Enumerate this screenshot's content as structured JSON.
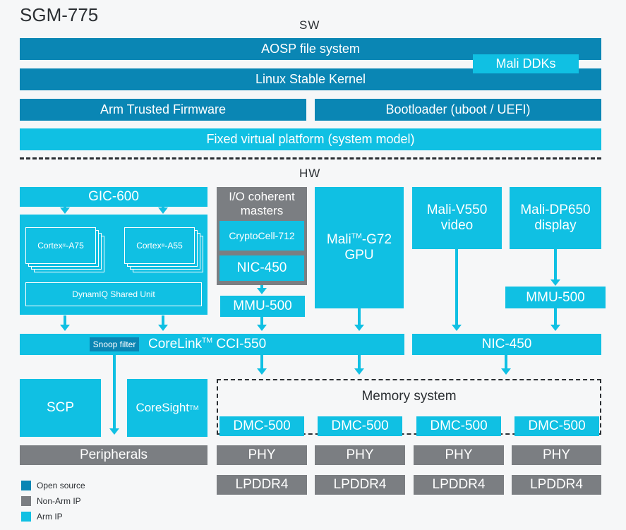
{
  "title": "SGM-775",
  "sw": {
    "header": "SW",
    "aosp": "AOSP file system",
    "mali_ddks": "Mali DDKs",
    "kernel": "Linux Stable Kernel",
    "atf": "Arm Trusted Firmware",
    "bootloader": "Bootloader (uboot / UEFI)",
    "fvp": "Fixed virtual platform (system model)"
  },
  "hw": {
    "header": "HW",
    "gic": "GIC-600",
    "cortex_a75": "Cortex",
    "cortex_a75_model": "-A75",
    "cortex_a55": "Cortex",
    "cortex_a55_model": "-A55",
    "reg_mark": "®",
    "dsu": "DynamIQ Shared Unit",
    "io_title_1": "I/O coherent",
    "io_title_2": "masters",
    "cryptocell": "CryptoCell-712",
    "nic_left": "NIC-450",
    "mmu_left": "MMU-500",
    "mali_gpu_1": "Mali",
    "mali_gpu_2": "-G72",
    "mali_gpu_3": "GPU",
    "tm_mark": "TM",
    "video_1": "Mali-V550",
    "video_2": "video",
    "display_1": "Mali-DP650",
    "display_2": "display",
    "mmu_right": "MMU-500",
    "snoop": "Snoop filter",
    "corelink": "CoreLink",
    "corelink_model": " CCI-550",
    "nic_right": "NIC-450",
    "scp": "SCP",
    "coresight": "CoreSight",
    "peripherals": "Peripherals",
    "memory_system": "Memory system",
    "dmc": [
      "DMC-500",
      "DMC-500",
      "DMC-500",
      "DMC-500"
    ],
    "phy": [
      "PHY",
      "PHY",
      "PHY",
      "PHY"
    ],
    "lpddr": [
      "LPDDR4",
      "LPDDR4",
      "LPDDR4",
      "LPDDR4"
    ]
  },
  "legend": [
    {
      "label": "Open source",
      "color": "#0a86b4"
    },
    {
      "label": "Non-Arm IP",
      "color": "#7b7e82"
    },
    {
      "label": "Arm IP",
      "color": "#10c0e3"
    }
  ]
}
